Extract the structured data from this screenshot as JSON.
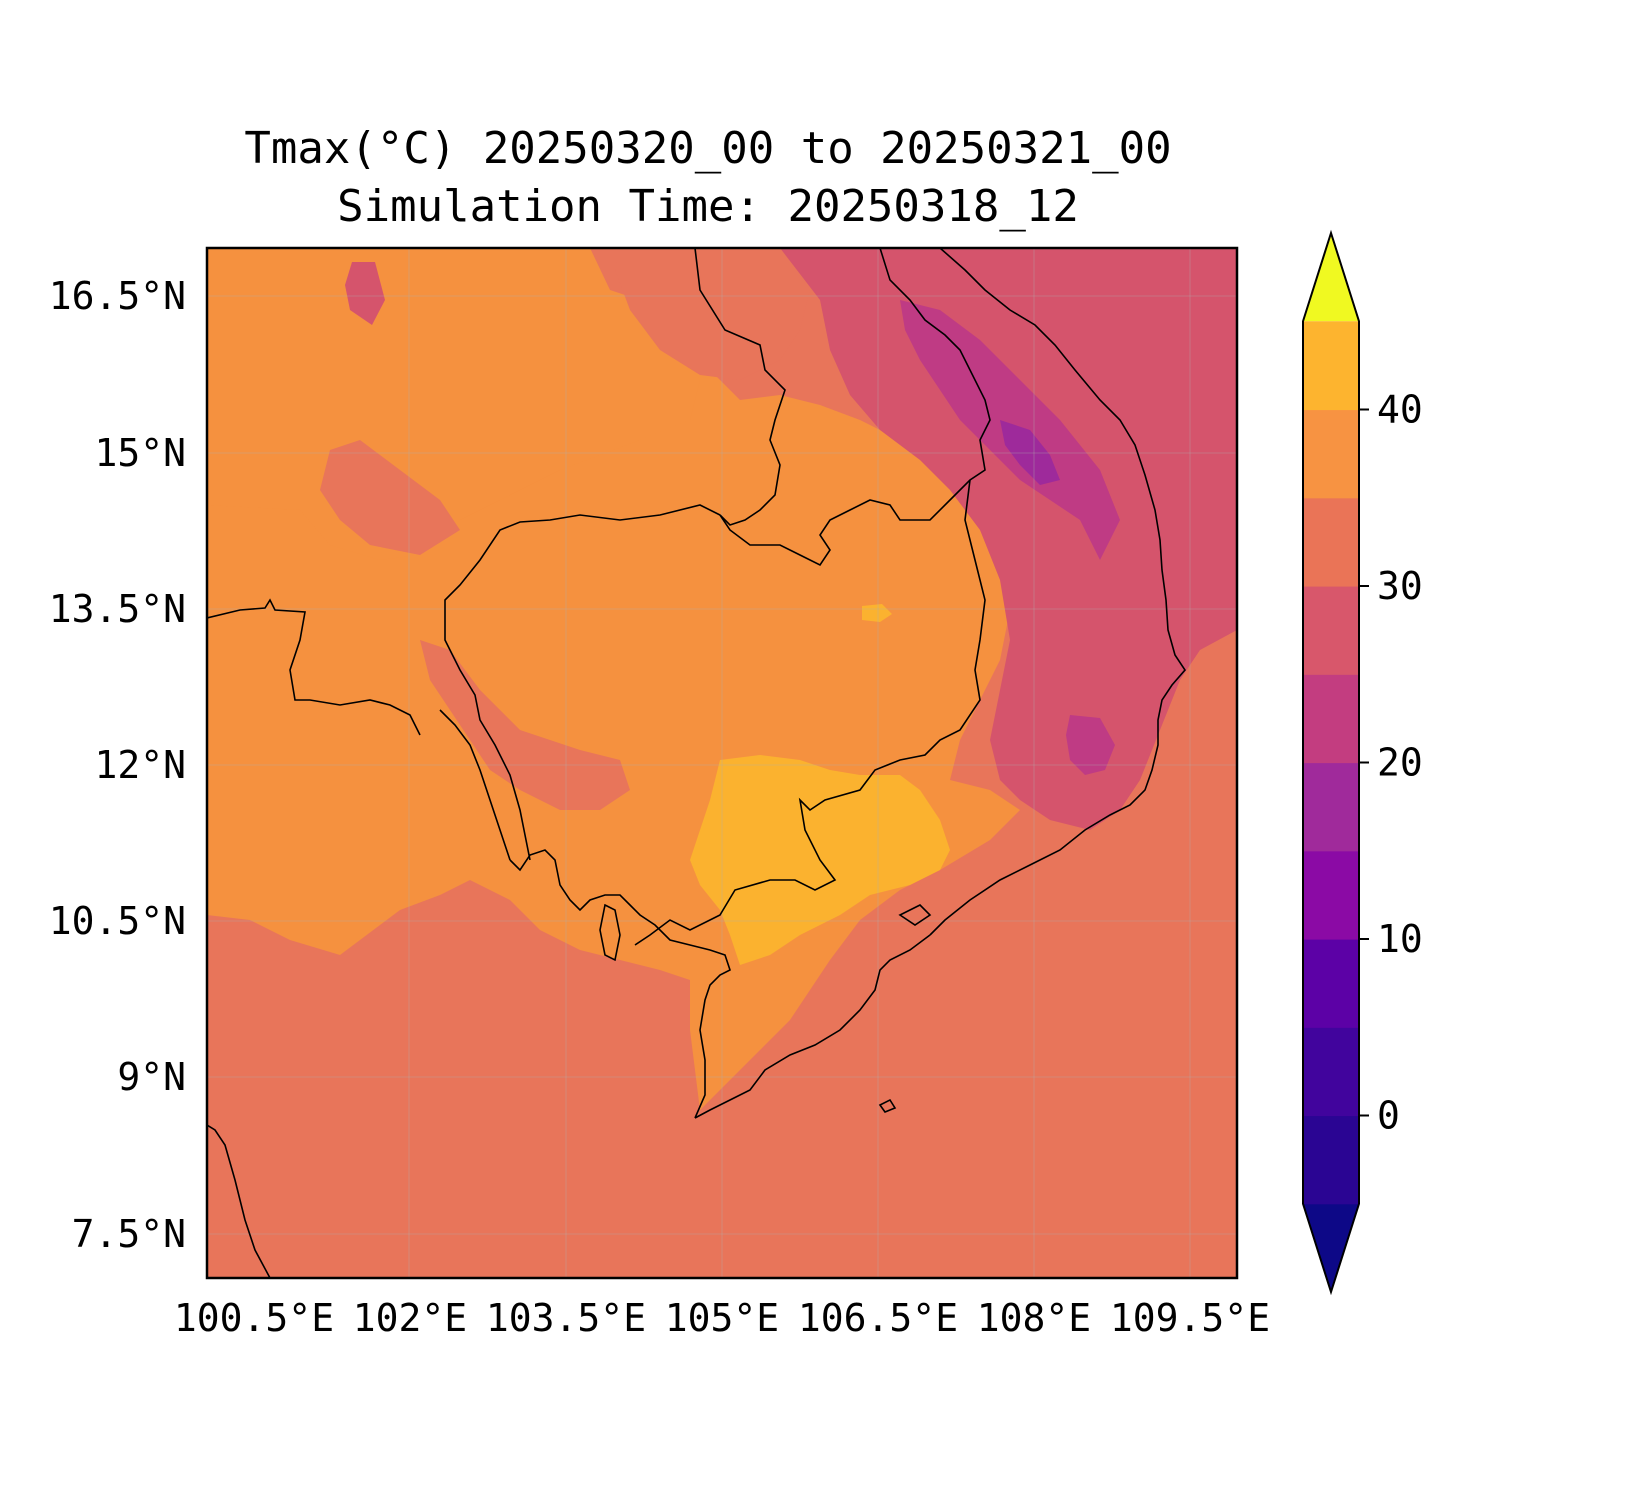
{
  "title": {
    "line1": "Tmax(°C) 20250320_00 to 20250321_00",
    "line2": "Simulation Time: 20250318_12"
  },
  "map": {
    "x_ticks": [
      "100.5°E",
      "102°E",
      "103.5°E",
      "105°E",
      "106.5°E",
      "108°E",
      "109.5°E"
    ],
    "y_ticks": [
      "16.5°N",
      "15°N",
      "13.5°N",
      "12°N",
      "10.5°N",
      "9°N",
      "7.5°N"
    ]
  },
  "colorbar": {
    "label": "",
    "ticks": [
      "0",
      "10",
      "20",
      "30",
      "40"
    ],
    "levels": [
      -5,
      0,
      5,
      10,
      15,
      20,
      25,
      30,
      35,
      40,
      45
    ],
    "colors": [
      "#0d0887",
      "#2a0593",
      "#41049d",
      "#5c01a6",
      "#8b0aa5",
      "#a02a9b",
      "#c33d80",
      "#d8576b",
      "#ea7457",
      "#f79342",
      "#fdb42f",
      "#f4e524",
      "#f0f921"
    ],
    "extend": "both",
    "cmap": "plasma"
  },
  "colors": {
    "ocean_lowland": "#e8755a",
    "inland_warm": "#f5913f",
    "hot": "#fbb22f",
    "highland": "#d5546c",
    "highland_cool": "#bf3b84",
    "mountain_peak": "#9e2a9b",
    "extend_low": "#0d0887",
    "extend_high": "#f0f921"
  }
}
